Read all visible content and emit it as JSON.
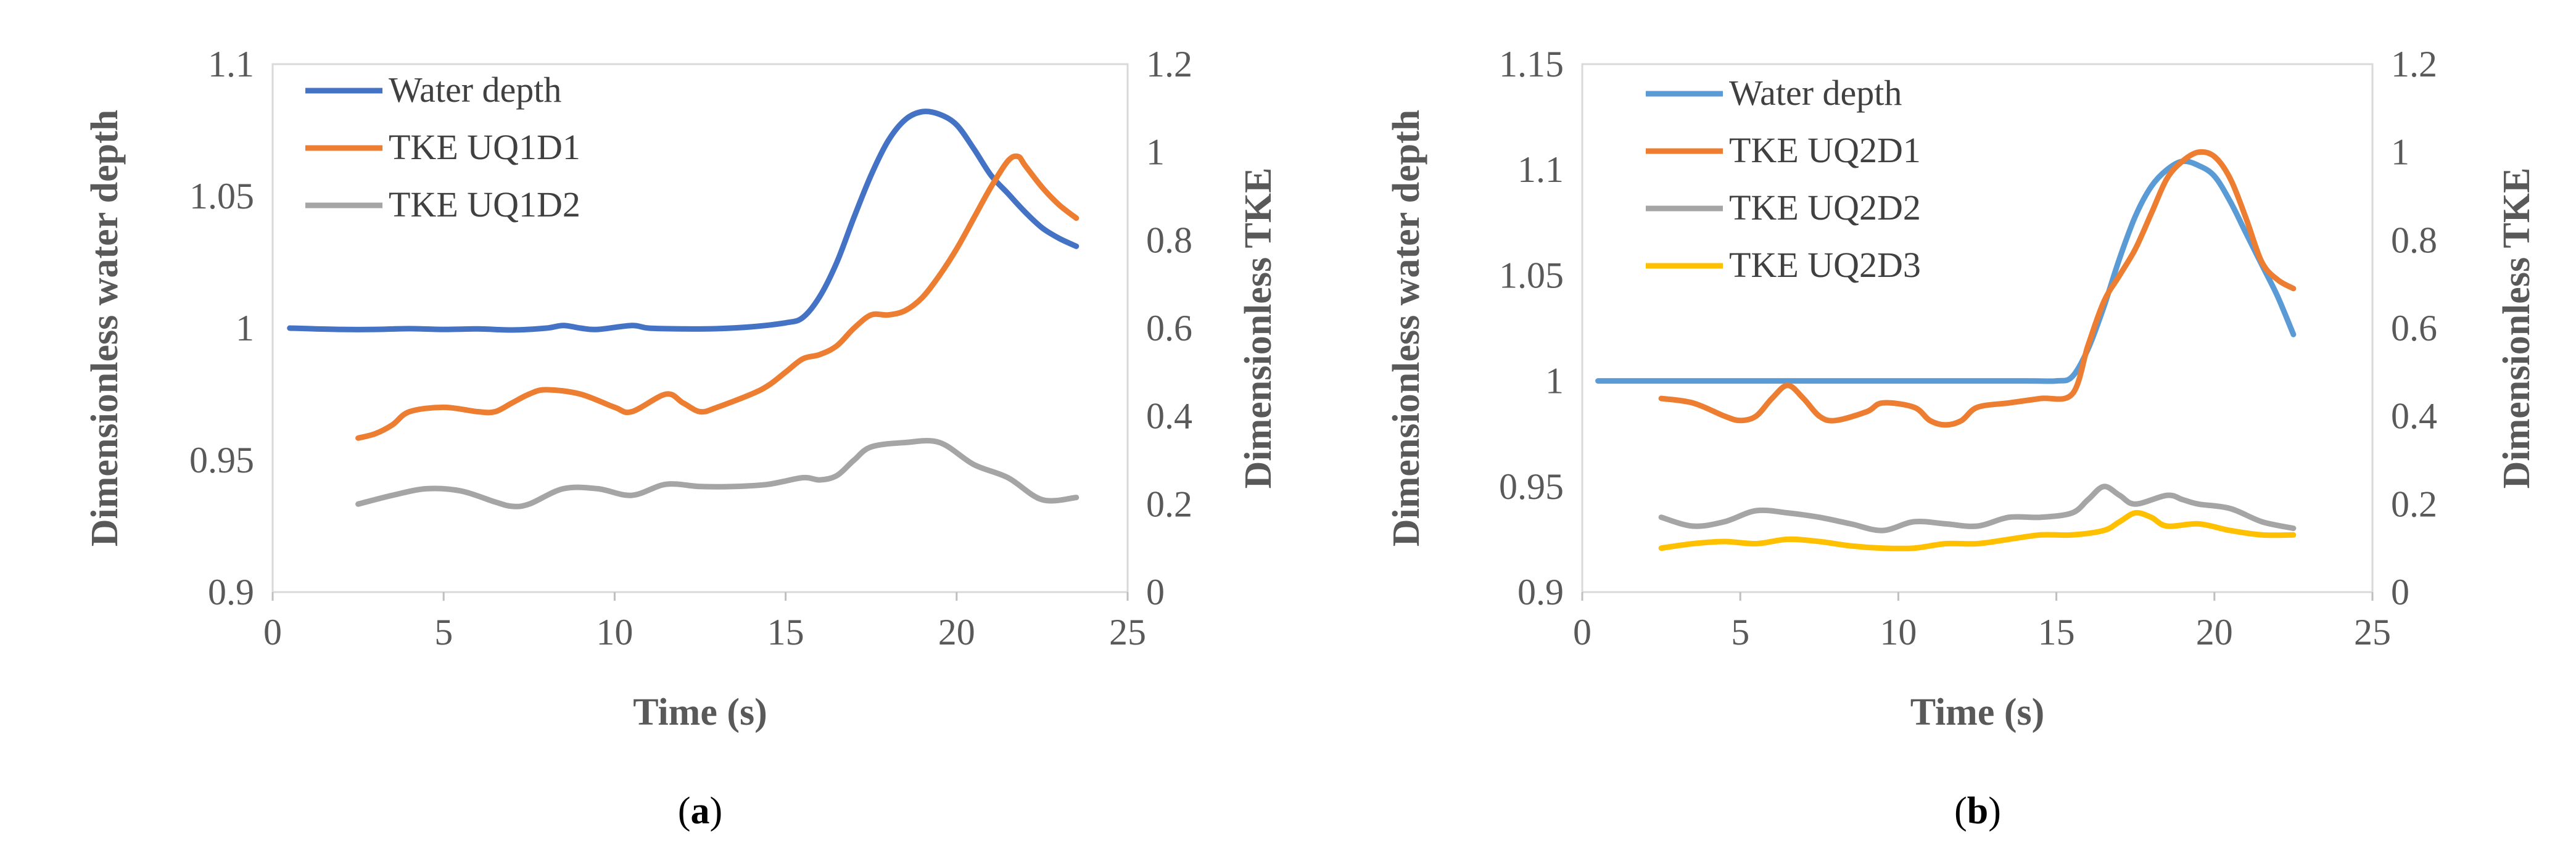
{
  "chart_data": [
    {
      "type": "line",
      "panel_label": "a",
      "xlabel": "Time (s)",
      "ylabel_left": "Dimensionless water depth",
      "ylabel_right": "Dimensionless TKE",
      "xlim": [
        0,
        25
      ],
      "ylim_left": [
        0.9,
        1.1
      ],
      "ylim_right": [
        0,
        1.2
      ],
      "x_ticks": [
        "0",
        "5",
        "10",
        "15",
        "20",
        "25"
      ],
      "y_left_ticks": [
        "0.9",
        "0.95",
        "1",
        "1.05",
        "1.1"
      ],
      "y_right_ticks": [
        "0",
        "0.2",
        "0.4",
        "0.6",
        "0.8",
        "1",
        "1.2"
      ],
      "legend_position": "top-left",
      "series": [
        {
          "name": "Water depth",
          "axis": "left",
          "color": "#4472C4",
          "points": [
            [
              0.5,
              1.0
            ],
            [
              2,
              0.9995
            ],
            [
              3,
              0.9995
            ],
            [
              4,
              0.9998
            ],
            [
              5,
              0.9995
            ],
            [
              6,
              0.9997
            ],
            [
              7,
              0.9993
            ],
            [
              8,
              1.0
            ],
            [
              8.5,
              1.001
            ],
            [
              9,
              1.0
            ],
            [
              9.5,
              0.9995
            ],
            [
              10.5,
              1.001
            ],
            [
              11,
              1.0
            ],
            [
              12,
              0.9997
            ],
            [
              13,
              0.9998
            ],
            [
              14,
              1.0005
            ],
            [
              15,
              1.002
            ],
            [
              15.5,
              1.004
            ],
            [
              16,
              1.012
            ],
            [
              16.5,
              1.025
            ],
            [
              17,
              1.042
            ],
            [
              17.5,
              1.058
            ],
            [
              18,
              1.071
            ],
            [
              18.5,
              1.079
            ],
            [
              19,
              1.082
            ],
            [
              19.5,
              1.081
            ],
            [
              20,
              1.077
            ],
            [
              20.5,
              1.068
            ],
            [
              21,
              1.058
            ],
            [
              21.5,
              1.051
            ],
            [
              22,
              1.044
            ],
            [
              22.5,
              1.038
            ],
            [
              23,
              1.034
            ],
            [
              23.5,
              1.031
            ]
          ]
        },
        {
          "name": "TKE UQ1D1",
          "axis": "right",
          "color": "#ED7D31",
          "points": [
            [
              2.5,
              0.35
            ],
            [
              3,
              0.36
            ],
            [
              3.5,
              0.38
            ],
            [
              4,
              0.41
            ],
            [
              5,
              0.42
            ],
            [
              6,
              0.41
            ],
            [
              6.5,
              0.41
            ],
            [
              7,
              0.43
            ],
            [
              7.5,
              0.45
            ],
            [
              8,
              0.46
            ],
            [
              9,
              0.45
            ],
            [
              10,
              0.42
            ],
            [
              10.5,
              0.41
            ],
            [
              11.5,
              0.45
            ],
            [
              12,
              0.43
            ],
            [
              12.5,
              0.41
            ],
            [
              13,
              0.42
            ],
            [
              14,
              0.45
            ],
            [
              14.5,
              0.47
            ],
            [
              15,
              0.5
            ],
            [
              15.5,
              0.53
            ],
            [
              16,
              0.54
            ],
            [
              16.5,
              0.56
            ],
            [
              17,
              0.6
            ],
            [
              17.5,
              0.63
            ],
            [
              18,
              0.63
            ],
            [
              18.5,
              0.64
            ],
            [
              19,
              0.67
            ],
            [
              19.5,
              0.72
            ],
            [
              20,
              0.78
            ],
            [
              20.5,
              0.85
            ],
            [
              21,
              0.92
            ],
            [
              21.5,
              0.98
            ],
            [
              21.8,
              0.99
            ],
            [
              22,
              0.97
            ],
            [
              22.5,
              0.92
            ],
            [
              23,
              0.88
            ],
            [
              23.5,
              0.85
            ]
          ]
        },
        {
          "name": "TKE UQ1D2",
          "axis": "right",
          "color": "#A5A5A5",
          "points": [
            [
              2.5,
              0.2
            ],
            [
              3.5,
              0.22
            ],
            [
              4.5,
              0.235
            ],
            [
              5.5,
              0.23
            ],
            [
              6.5,
              0.205
            ],
            [
              7,
              0.195
            ],
            [
              7.5,
              0.2
            ],
            [
              8.5,
              0.235
            ],
            [
              9.5,
              0.235
            ],
            [
              10.5,
              0.22
            ],
            [
              11.5,
              0.245
            ],
            [
              12.5,
              0.24
            ],
            [
              13.5,
              0.24
            ],
            [
              14.5,
              0.245
            ],
            [
              15.5,
              0.26
            ],
            [
              16,
              0.255
            ],
            [
              16.5,
              0.265
            ],
            [
              17,
              0.3
            ],
            [
              17.5,
              0.33
            ],
            [
              18.5,
              0.34
            ],
            [
              19.5,
              0.34
            ],
            [
              20.5,
              0.29
            ],
            [
              21.5,
              0.26
            ],
            [
              22.5,
              0.21
            ],
            [
              23.5,
              0.215
            ]
          ]
        }
      ]
    },
    {
      "type": "line",
      "panel_label": "b",
      "xlabel": "Time (s)",
      "ylabel_left": "Dimensionless water depth",
      "ylabel_right": "Dimensionless TKE",
      "xlim": [
        0,
        25
      ],
      "ylim_left": [
        0.9,
        1.15
      ],
      "ylim_right": [
        0,
        1.2
      ],
      "x_ticks": [
        "0",
        "5",
        "10",
        "15",
        "20",
        "25"
      ],
      "y_left_ticks": [
        "0.9",
        "0.95",
        "1",
        "1.05",
        "1.1",
        "1.15"
      ],
      "y_right_ticks": [
        "0",
        "0.2",
        "0.4",
        "0.6",
        "0.8",
        "1",
        "1.2"
      ],
      "legend_position": "top-left",
      "series": [
        {
          "name": "Water depth",
          "axis": "left",
          "color": "#5B9BD5",
          "points": [
            [
              0.5,
              1.0
            ],
            [
              5,
              1.0
            ],
            [
              10,
              1.0
            ],
            [
              14,
              1.0
            ],
            [
              15,
              1.0
            ],
            [
              15.5,
              1.002
            ],
            [
              16,
              1.015
            ],
            [
              16.5,
              1.035
            ],
            [
              17,
              1.058
            ],
            [
              17.5,
              1.078
            ],
            [
              18,
              1.092
            ],
            [
              18.5,
              1.1
            ],
            [
              19,
              1.104
            ],
            [
              19.5,
              1.102
            ],
            [
              20,
              1.097
            ],
            [
              20.5,
              1.085
            ],
            [
              21,
              1.07
            ],
            [
              21.5,
              1.055
            ],
            [
              22,
              1.04
            ],
            [
              22.5,
              1.022
            ]
          ]
        },
        {
          "name": "TKE UQ2D1",
          "axis": "right",
          "color": "#ED7D31",
          "points": [
            [
              2.5,
              0.44
            ],
            [
              3.5,
              0.43
            ],
            [
              4.5,
              0.4
            ],
            [
              5,
              0.39
            ],
            [
              5.5,
              0.4
            ],
            [
              6,
              0.44
            ],
            [
              6.5,
              0.47
            ],
            [
              7,
              0.44
            ],
            [
              7.5,
              0.4
            ],
            [
              8,
              0.39
            ],
            [
              9,
              0.41
            ],
            [
              9.5,
              0.43
            ],
            [
              10.5,
              0.42
            ],
            [
              11,
              0.39
            ],
            [
              11.5,
              0.38
            ],
            [
              12,
              0.39
            ],
            [
              12.5,
              0.42
            ],
            [
              13.5,
              0.43
            ],
            [
              14.5,
              0.44
            ],
            [
              15.5,
              0.45
            ],
            [
              16,
              0.56
            ],
            [
              16.5,
              0.66
            ],
            [
              17,
              0.72
            ],
            [
              17.5,
              0.78
            ],
            [
              18,
              0.86
            ],
            [
              18.5,
              0.94
            ],
            [
              19,
              0.98
            ],
            [
              19.5,
              1.0
            ],
            [
              20,
              0.99
            ],
            [
              20.5,
              0.94
            ],
            [
              21,
              0.85
            ],
            [
              21.5,
              0.75
            ],
            [
              22,
              0.71
            ],
            [
              22.5,
              0.69
            ]
          ]
        },
        {
          "name": "TKE UQ2D2",
          "axis": "right",
          "color": "#A5A5A5",
          "points": [
            [
              2.5,
              0.17
            ],
            [
              3.5,
              0.15
            ],
            [
              4.5,
              0.16
            ],
            [
              5.5,
              0.185
            ],
            [
              6.5,
              0.18
            ],
            [
              7.5,
              0.17
            ],
            [
              8.5,
              0.155
            ],
            [
              9.5,
              0.14
            ],
            [
              10.5,
              0.16
            ],
            [
              11.5,
              0.155
            ],
            [
              12.5,
              0.15
            ],
            [
              13.5,
              0.17
            ],
            [
              14.5,
              0.17
            ],
            [
              15.5,
              0.18
            ],
            [
              16,
              0.21
            ],
            [
              16.5,
              0.24
            ],
            [
              17,
              0.22
            ],
            [
              17.5,
              0.2
            ],
            [
              18.5,
              0.22
            ],
            [
              19,
              0.21
            ],
            [
              19.5,
              0.2
            ],
            [
              20.5,
              0.19
            ],
            [
              21.5,
              0.16
            ],
            [
              22.5,
              0.145
            ]
          ]
        },
        {
          "name": "TKE UQ2D3",
          "axis": "right",
          "color": "#FFC000",
          "points": [
            [
              2.5,
              0.1
            ],
            [
              3.5,
              0.11
            ],
            [
              4.5,
              0.115
            ],
            [
              5.5,
              0.11
            ],
            [
              6.5,
              0.12
            ],
            [
              7.5,
              0.115
            ],
            [
              8.5,
              0.105
            ],
            [
              9.5,
              0.1
            ],
            [
              10.5,
              0.1
            ],
            [
              11.5,
              0.11
            ],
            [
              12.5,
              0.11
            ],
            [
              13.5,
              0.12
            ],
            [
              14.5,
              0.13
            ],
            [
              15.5,
              0.13
            ],
            [
              16.5,
              0.14
            ],
            [
              17,
              0.16
            ],
            [
              17.5,
              0.18
            ],
            [
              18,
              0.17
            ],
            [
              18.5,
              0.15
            ],
            [
              19.5,
              0.155
            ],
            [
              20.5,
              0.14
            ],
            [
              21.5,
              0.13
            ],
            [
              22.5,
              0.13
            ]
          ]
        }
      ]
    }
  ]
}
